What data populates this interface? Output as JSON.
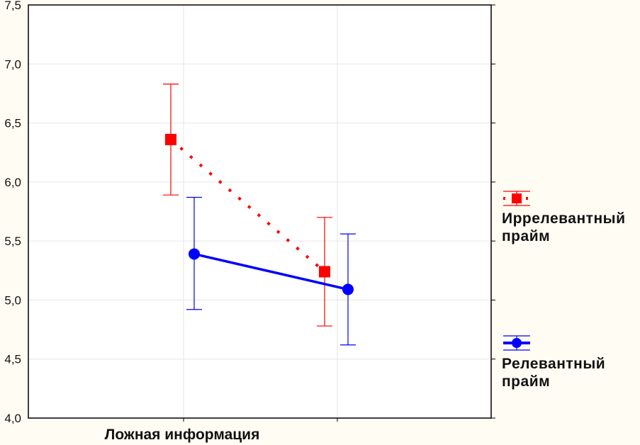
{
  "chart_data": {
    "type": "line",
    "title": "",
    "xlabel": "",
    "ylabel": "",
    "categories": [
      "Ложная информация",
      ""
    ],
    "ylim": [
      4.0,
      7.5
    ],
    "yticks": [
      "4,0",
      "4,5",
      "5,0",
      "5,5",
      "6,0",
      "6,5",
      "7,0",
      "7,5"
    ],
    "grid": true,
    "legend_position": "right",
    "series": [
      {
        "name": "Иррелевантный прайм",
        "color": "#ff0000",
        "marker": "square",
        "line": "dotted",
        "values": [
          6.36,
          5.24
        ],
        "upper": [
          6.83,
          5.7
        ],
        "lower": [
          5.89,
          4.78
        ]
      },
      {
        "name": "Релевантный прайм",
        "color": "#0000ff",
        "marker": "circle",
        "line": "solid",
        "values": [
          5.39,
          5.09
        ],
        "upper": [
          5.87,
          5.56
        ],
        "lower": [
          4.92,
          4.62
        ]
      }
    ]
  },
  "legend": {
    "items": [
      {
        "line1": "Иррелевантный",
        "line2": "прайм"
      },
      {
        "line1": "Релевантный",
        "line2": "прайм"
      }
    ]
  }
}
